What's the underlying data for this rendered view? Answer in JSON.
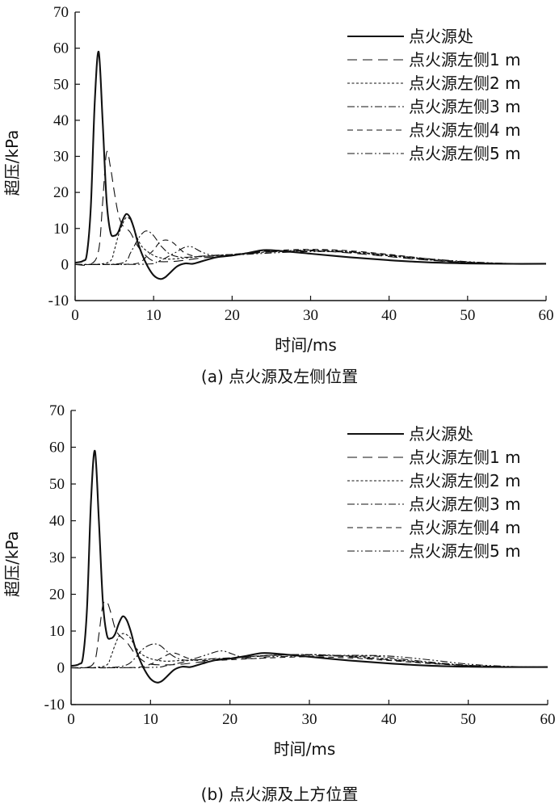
{
  "chart_data": [
    {
      "type": "line",
      "caption": "(a) 点火源及左侧位置",
      "xlabel": "时间/ms",
      "ylabel": "超压/kPa",
      "xlim": [
        0,
        60
      ],
      "ylim": [
        -10,
        70
      ],
      "xticks": [
        "0",
        "10",
        "20",
        "30",
        "40",
        "50",
        "60"
      ],
      "yticks": [
        "-10",
        "0",
        "10",
        "20",
        "30",
        "40",
        "50",
        "60",
        "70"
      ],
      "grid": false,
      "legend_position": "top-right",
      "series": [
        {
          "name": "点火源处",
          "style": "solid",
          "x": [
            0,
            1,
            1.5,
            2,
            2.5,
            3,
            3.5,
            4,
            4.5,
            5,
            5.5,
            6,
            6.5,
            7,
            7.5,
            8,
            8.5,
            9,
            9.5,
            10,
            10.5,
            11,
            11.5,
            12,
            13,
            14,
            15,
            16,
            18,
            20,
            22,
            24,
            26,
            30,
            35,
            40,
            45,
            50,
            55,
            60
          ],
          "y": [
            0.5,
            1,
            3,
            16,
            45,
            59,
            40,
            18,
            9,
            8,
            9,
            12,
            14,
            13,
            10,
            6,
            3,
            0.5,
            -1.5,
            -3,
            -3.8,
            -4,
            -3.5,
            -2.5,
            -0.5,
            0.3,
            0.2,
            0.8,
            2,
            2.5,
            3.2,
            4,
            3.8,
            3,
            2,
            1.2,
            0.6,
            0.3,
            0.2,
            0.2
          ]
        },
        {
          "name": "点火源左侧1 m",
          "style": "dash-long",
          "x": [
            0,
            2,
            3,
            3.5,
            4,
            4.5,
            5,
            5.5,
            6,
            6.5,
            7,
            7.5,
            8,
            9,
            10,
            12,
            14,
            16,
            20,
            25,
            30,
            35,
            40,
            45,
            50,
            55,
            60
          ],
          "y": [
            0,
            0.1,
            4,
            17,
            31,
            27,
            20,
            14,
            11,
            10,
            9,
            7,
            5,
            2.5,
            1,
            0.8,
            1.2,
            1.8,
            2.6,
            3.5,
            3.8,
            3.2,
            2.2,
            1.2,
            0.5,
            0.3,
            0.2
          ]
        },
        {
          "name": "点火源左侧2 m",
          "style": "dash-short",
          "x": [
            0,
            3,
            4.5,
            5,
            5.5,
            6,
            6.5,
            7,
            7.5,
            8,
            8.5,
            9,
            10,
            11,
            12,
            14,
            16,
            20,
            25,
            30,
            35,
            40,
            45,
            50,
            55,
            60
          ],
          "y": [
            0,
            0.1,
            1,
            4,
            8,
            11,
            13,
            12.5,
            10,
            7,
            5,
            4,
            2.5,
            1.8,
            1.5,
            1.8,
            2.2,
            2.8,
            3.5,
            3.8,
            3.4,
            2.4,
            1.3,
            0.5,
            0.3,
            0.2
          ]
        },
        {
          "name": "点火源左侧3 m",
          "style": "dash-dot",
          "x": [
            0,
            5,
            6.5,
            7,
            7.5,
            8,
            8.5,
            9,
            9.5,
            10,
            10.5,
            11,
            12,
            13,
            14,
            16,
            18,
            20,
            25,
            30,
            35,
            40,
            45,
            50,
            55,
            60
          ],
          "y": [
            0,
            0.1,
            1,
            3,
            5,
            7,
            8.5,
            9.3,
            9,
            8,
            6.5,
            5,
            3,
            2.2,
            2,
            2.3,
            2.6,
            2.8,
            3.6,
            4,
            3.6,
            2.6,
            1.4,
            0.6,
            0.3,
            0.2
          ]
        },
        {
          "name": "点火源左侧4 m",
          "style": "dash-mid",
          "x": [
            0,
            7,
            8.5,
            9,
            10,
            10.5,
            11,
            11.5,
            12,
            12.5,
            13,
            13.5,
            14,
            15,
            16,
            18,
            20,
            25,
            30,
            35,
            40,
            45,
            50,
            55,
            60
          ],
          "y": [
            0,
            0.1,
            1,
            2,
            4,
            5.5,
            6.5,
            6.8,
            6.6,
            6,
            5,
            4,
            3.2,
            2.4,
            2.2,
            2.5,
            2.8,
            3.8,
            4.2,
            3.8,
            2.8,
            1.6,
            0.7,
            0.3,
            0.2
          ]
        },
        {
          "name": "点火源左侧5 m",
          "style": "dash-dot-dot",
          "x": [
            0,
            9,
            10.5,
            11.5,
            12.5,
            13,
            13.5,
            14,
            14.5,
            15,
            15.5,
            16,
            17,
            18,
            20,
            25,
            30,
            35,
            40,
            45,
            50,
            55,
            60
          ],
          "y": [
            0,
            0.1,
            0.8,
            1.8,
            3,
            3.6,
            4.3,
            4.8,
            5,
            4.8,
            4.2,
            3.6,
            2.8,
            2.5,
            2.6,
            3.2,
            3.6,
            3.4,
            2.6,
            1.6,
            0.8,
            0.3,
            0.2
          ]
        }
      ]
    },
    {
      "type": "line",
      "caption": "(b) 点火源及上方位置",
      "xlabel": "时间/ms",
      "ylabel": "超压/kPa",
      "xlim": [
        0,
        60
      ],
      "ylim": [
        -10,
        70
      ],
      "xticks": [
        "0",
        "10",
        "20",
        "30",
        "40",
        "50",
        "60"
      ],
      "yticks": [
        "-10",
        "0",
        "10",
        "20",
        "30",
        "40",
        "50",
        "60",
        "70"
      ],
      "grid": false,
      "legend_position": "top-right",
      "series": [
        {
          "name": "点火源处",
          "style": "solid",
          "x": [
            0,
            1,
            1.5,
            2,
            2.5,
            3,
            3.5,
            4,
            4.5,
            5,
            5.5,
            6,
            6.5,
            7,
            7.5,
            8,
            8.5,
            9,
            9.5,
            10,
            10.5,
            11,
            11.5,
            12,
            13,
            14,
            15,
            16,
            18,
            20,
            22,
            24,
            26,
            30,
            35,
            40,
            45,
            50,
            55,
            60
          ],
          "y": [
            0.5,
            1,
            3,
            16,
            45,
            59,
            40,
            18,
            9,
            8,
            9,
            12,
            14,
            13,
            10,
            6,
            3,
            0.5,
            -1.5,
            -3,
            -3.8,
            -4,
            -3.5,
            -2.5,
            -0.5,
            0.3,
            0.2,
            0.8,
            2,
            2.5,
            3.2,
            4,
            3.8,
            3,
            2,
            1.2,
            0.6,
            0.3,
            0.2,
            0.2
          ]
        },
        {
          "name": "点火源左侧1 m",
          "style": "dash-long",
          "x": [
            0,
            2,
            3,
            3.5,
            4,
            4.5,
            5,
            5.5,
            6,
            6.5,
            7,
            7.5,
            8,
            9,
            10,
            12,
            14,
            16,
            20,
            25,
            30,
            35,
            40,
            45,
            50,
            55,
            60
          ],
          "y": [
            0,
            0.1,
            2,
            9,
            17,
            18,
            15,
            11,
            9,
            8,
            7,
            5.5,
            4,
            2,
            1,
            0.8,
            1,
            1.5,
            2.4,
            3.3,
            3.5,
            3,
            2.2,
            1.3,
            0.6,
            0.3,
            0.2
          ]
        },
        {
          "name": "点火源左侧2 m",
          "style": "dash-short",
          "x": [
            0,
            3,
            4.5,
            5,
            5.5,
            6,
            6.5,
            7,
            7.5,
            8,
            8.5,
            9,
            10,
            11,
            12,
            14,
            16,
            20,
            25,
            30,
            35,
            40,
            45,
            50,
            55,
            60
          ],
          "y": [
            0,
            0.1,
            0.8,
            3,
            6,
            8.5,
            9.3,
            9,
            8,
            6,
            4.5,
            3.5,
            2.5,
            2,
            1.8,
            2,
            2.2,
            2.6,
            3.4,
            3.6,
            3.2,
            2.4,
            1.4,
            0.6,
            0.3,
            0.2
          ]
        },
        {
          "name": "点火源左侧3 m",
          "style": "dash-dot",
          "x": [
            0,
            5,
            7,
            8,
            8.5,
            9,
            9.5,
            10,
            10.5,
            11,
            11.5,
            12,
            13,
            14,
            15,
            16,
            18,
            20,
            25,
            30,
            35,
            38,
            40,
            45,
            50,
            55,
            60
          ],
          "y": [
            0,
            0.1,
            0.8,
            2.5,
            3.8,
            5,
            5.8,
            6.3,
            6.5,
            6.3,
            5.6,
            4.6,
            3,
            2.2,
            2,
            2.2,
            2.5,
            2.7,
            3.4,
            3.6,
            3.2,
            3.2,
            2.8,
            1.6,
            0.7,
            0.3,
            0.2
          ]
        },
        {
          "name": "点火源左侧4 m",
          "style": "dash-mid",
          "x": [
            0,
            8,
            10,
            11,
            12,
            12.5,
            13,
            13.5,
            14,
            15,
            16,
            18,
            20,
            25,
            30,
            35,
            40,
            45,
            50,
            55,
            60
          ],
          "y": [
            0,
            0.1,
            1,
            2.2,
            3.4,
            3.9,
            4,
            3.7,
            3.2,
            2.4,
            2,
            2,
            2.2,
            2.7,
            3,
            2.7,
            2,
            1.2,
            0.6,
            0.3,
            0.2
          ]
        },
        {
          "name": "点火源左侧5 m",
          "style": "dash-dot-dot",
          "x": [
            0,
            10,
            12,
            14,
            15,
            16,
            17,
            18,
            18.5,
            19,
            19.5,
            20,
            21,
            22,
            24,
            25,
            30,
            35,
            40,
            45,
            50,
            55,
            60
          ],
          "y": [
            0,
            0.1,
            0.6,
            1.5,
            2.2,
            2.8,
            3.5,
            4.2,
            4.5,
            4.6,
            4.4,
            4,
            3.2,
            2.6,
            2.6,
            3,
            3.2,
            3.4,
            3.2,
            2.2,
            1,
            0.4,
            0.2
          ]
        }
      ]
    }
  ]
}
